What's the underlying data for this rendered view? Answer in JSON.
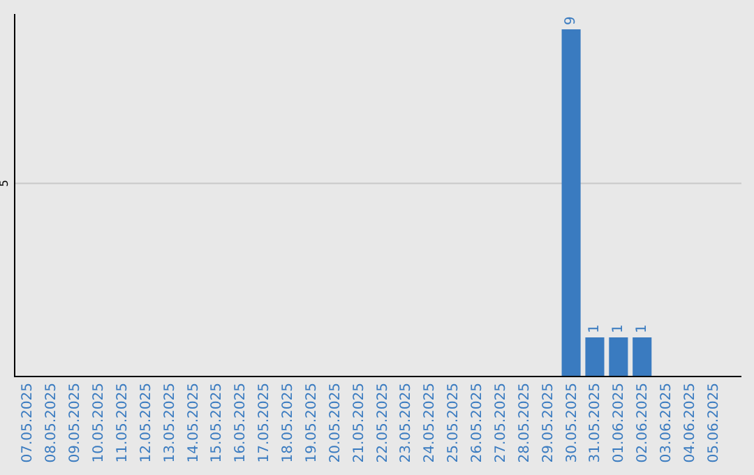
{
  "chart_data": {
    "type": "bar",
    "categories": [
      "07.05.2025",
      "08.05.2025",
      "09.05.2025",
      "10.05.2025",
      "11.05.2025",
      "12.05.2025",
      "13.05.2025",
      "14.05.2025",
      "15.05.2025",
      "16.05.2025",
      "17.05.2025",
      "18.05.2025",
      "19.05.2025",
      "20.05.2025",
      "21.05.2025",
      "22.05.2025",
      "23.05.2025",
      "24.05.2025",
      "25.05.2025",
      "26.05.2025",
      "27.05.2025",
      "28.05.2025",
      "29.05.2025",
      "30.05.2025",
      "31.05.2025",
      "01.06.2025",
      "02.06.2025",
      "03.06.2025",
      "04.06.2025",
      "05.06.2025"
    ],
    "values": [
      null,
      null,
      null,
      null,
      null,
      null,
      null,
      null,
      null,
      null,
      null,
      null,
      null,
      null,
      null,
      null,
      null,
      null,
      null,
      null,
      null,
      null,
      null,
      9,
      1,
      1,
      1,
      null,
      null,
      null
    ],
    "data_labels": true,
    "color": "#3a7bc0",
    "ylim": [
      0,
      9.4
    ],
    "ref_lines": [
      {
        "axis": "y",
        "value": 5,
        "label": "5",
        "color": "#c8c8c8"
      }
    ]
  }
}
